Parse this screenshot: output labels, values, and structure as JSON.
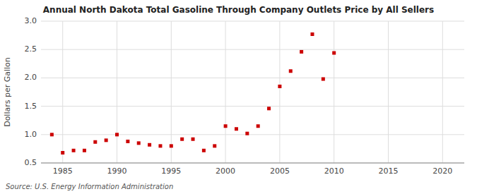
{
  "chart_data": {
    "type": "scatter",
    "title": "Annual North Dakota Total Gasoline Through Company Outlets Price by All Sellers",
    "ylabel": "Dollars per Gallon",
    "annotation": "Source: U.S. Energy Information Administration",
    "x": [
      1984,
      1985,
      1986,
      1987,
      1988,
      1989,
      1990,
      1991,
      1992,
      1993,
      1994,
      1995,
      1996,
      1997,
      1998,
      1999,
      2000,
      2001,
      2002,
      2003,
      2004,
      2005,
      2006,
      2007,
      2008,
      2009,
      2010
    ],
    "values": [
      1.0,
      0.68,
      0.72,
      0.72,
      0.87,
      0.9,
      1.0,
      0.88,
      0.85,
      0.82,
      0.8,
      0.8,
      0.92,
      0.92,
      0.72,
      0.8,
      1.15,
      1.1,
      1.02,
      1.15,
      1.46,
      1.85,
      2.12,
      2.46,
      2.77,
      1.98,
      2.44
    ],
    "color": "#cc0000",
    "marker": "square",
    "xlim": [
      1983,
      2022
    ],
    "ylim": [
      0.5,
      3.0
    ],
    "xticks": [
      1985,
      1990,
      1995,
      2000,
      2005,
      2010,
      2015,
      2020
    ],
    "yticks": [
      0.5,
      {
        "value": 1.0,
        "label": "1.0"
      },
      1.5,
      {
        "value": 2.0,
        "label": "2.0"
      },
      2.5,
      {
        "value": 3.0,
        "label": "3.0"
      }
    ],
    "grid": true
  }
}
